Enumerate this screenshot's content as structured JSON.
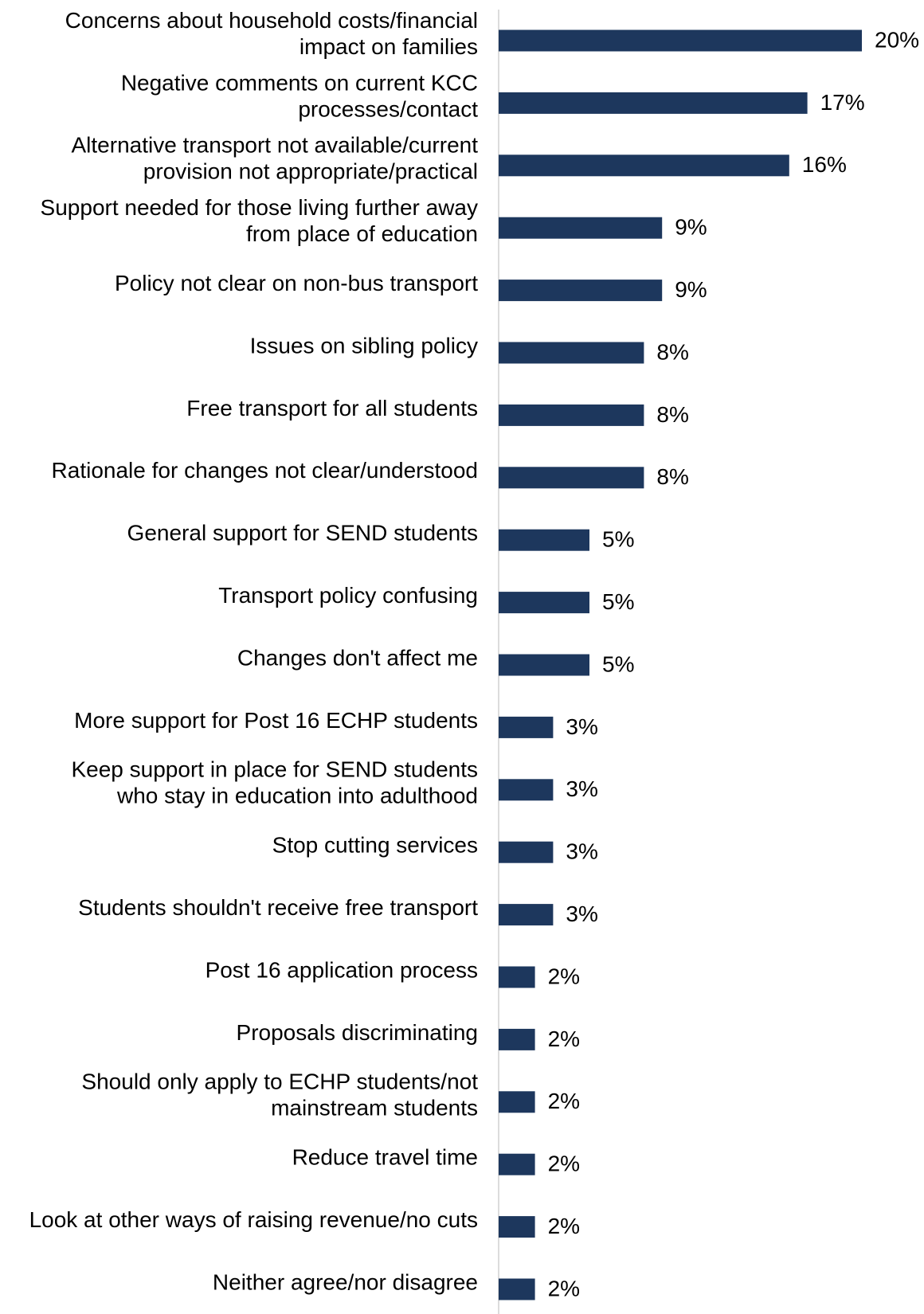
{
  "chart_data": {
    "type": "bar",
    "orientation": "horizontal",
    "categories": [
      [
        "Concerns about household costs/financial",
        "impact on families"
      ],
      [
        "Negative comments on current KCC",
        "processes/contact"
      ],
      [
        "Alternative transport not available/current",
        "provision not appropriate/practical"
      ],
      [
        "Support needed for those living further away",
        "from place of education"
      ],
      [
        "Policy not clear on non-bus transport"
      ],
      [
        "Issues on sibling policy"
      ],
      [
        "Free transport for all students"
      ],
      [
        "Rationale for changes not clear/understood"
      ],
      [
        "General support for SEND students"
      ],
      [
        "Transport policy confusing"
      ],
      [
        "Changes don't affect me"
      ],
      [
        "More support for Post 16 ECHP students"
      ],
      [
        "Keep support in place for SEND students",
        "who stay in education into adulthood"
      ],
      [
        "Stop cutting services"
      ],
      [
        "Students shouldn't receive free transport"
      ],
      [
        "Post 16 application process"
      ],
      [
        "Proposals discriminating"
      ],
      [
        "Should only apply to ECHP students/not",
        "mainstream students"
      ],
      [
        "Reduce travel time"
      ],
      [
        "Look at other ways of raising revenue/no cuts"
      ],
      [
        "Neither agree/nor disagree"
      ]
    ],
    "values": [
      20,
      17,
      16,
      9,
      9,
      8,
      8,
      8,
      5,
      5,
      5,
      3,
      3,
      3,
      3,
      2,
      2,
      2,
      2,
      2,
      2
    ],
    "value_labels": [
      "20%",
      "17%",
      "16%",
      "9%",
      "9%",
      "8%",
      "8%",
      "8%",
      "5%",
      "5%",
      "5%",
      "3%",
      "3%",
      "3%",
      "3%",
      "2%",
      "2%",
      "2%",
      "2%",
      "2%",
      "2%"
    ],
    "unit": "%",
    "xlim": [
      0,
      20
    ],
    "grid": false,
    "bar_color": "#1d375d",
    "axis_color": "#d0d0d0"
  }
}
